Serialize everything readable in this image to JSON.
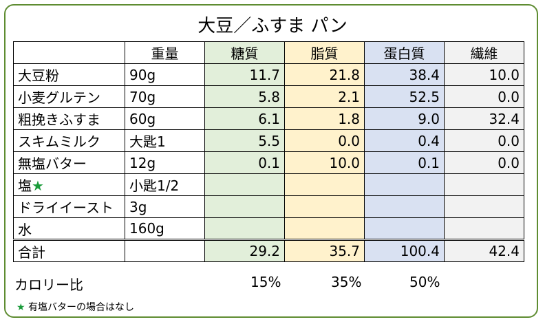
{
  "title": "大豆／ふすま パン",
  "headers": [
    "",
    "重量",
    "糖質",
    "脂質",
    "蛋白質",
    "繊維"
  ],
  "rows": [
    {
      "name": "大豆粉",
      "weight": "90g",
      "sugar": "11.7",
      "fat": "21.8",
      "protein": "38.4",
      "fiber": "10.0"
    },
    {
      "name": "小麦グルテン",
      "weight": "70g",
      "sugar": "5.8",
      "fat": "2.1",
      "protein": "52.5",
      "fiber": "0.0"
    },
    {
      "name": "粗挽きふすま",
      "weight": "60g",
      "sugar": "6.1",
      "fat": "1.8",
      "protein": "9.0",
      "fiber": "32.4"
    },
    {
      "name": "スキムミルク",
      "weight": "大匙1",
      "sugar": "5.5",
      "fat": "0.0",
      "protein": "0.4",
      "fiber": "0.0"
    },
    {
      "name": "無塩バター",
      "weight": "12g",
      "sugar": "0.1",
      "fat": "10.0",
      "protein": "0.1",
      "fiber": "0.0"
    },
    {
      "name": "塩",
      "star": "★",
      "weight": "小匙1/2",
      "sugar": "",
      "fat": "",
      "protein": "",
      "fiber": ""
    },
    {
      "name": "ドライイースト",
      "weight": "3g",
      "sugar": "",
      "fat": "",
      "protein": "",
      "fiber": ""
    },
    {
      "name": "水",
      "weight": "160g",
      "sugar": "",
      "fat": "",
      "protein": "",
      "fiber": ""
    }
  ],
  "total": {
    "name": "合計",
    "weight": "",
    "sugar": "29.2",
    "fat": "35.7",
    "protein": "100.4",
    "fiber": "42.4"
  },
  "calorie": {
    "label": "カロリー比",
    "sugar": "15%",
    "fat": "35%",
    "protein": "50%"
  },
  "note": {
    "star": "★",
    "text": "有塩バターの場合はなし"
  },
  "colors": {
    "border": "#5e8c31",
    "sugar": "#e2efda",
    "fat": "#fff2cc",
    "protein": "#d9e1f2",
    "fiber": "#f2f2f2",
    "star": "#1a9b3a"
  }
}
